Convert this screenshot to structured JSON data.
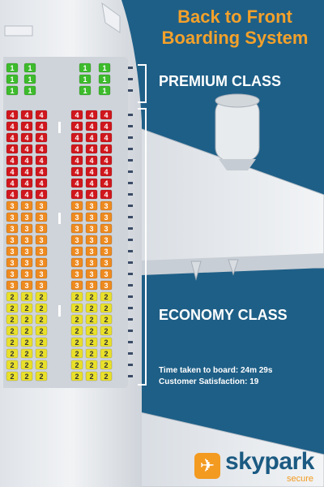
{
  "title": {
    "line1": "Back to Front",
    "line2": "Boarding System"
  },
  "labels": {
    "premium": "PREMIUM CLASS",
    "economy": "ECONOMY CLASS"
  },
  "stats": {
    "time": "Time taken to board: 24m 29s",
    "satisfaction": "Customer Satisfaction: 19"
  },
  "brand": {
    "name": "skypark",
    "tagline": "secure",
    "icon": "plane-icon"
  },
  "colors": {
    "background": "#1e5f87",
    "fuselage": "#e6e9ed",
    "group1": "#3dbb2c",
    "group2": "#e9e02b",
    "group3": "#ee8a1f",
    "group4": "#d0171d",
    "accent": "#f4a12a"
  },
  "seating": {
    "premium": {
      "rows": 3,
      "left_seats": 2,
      "right_seats": 2,
      "group": "1"
    },
    "economy": [
      {
        "group": "4",
        "rows": 8
      },
      {
        "group": "3",
        "rows": 8
      },
      {
        "group": "2",
        "rows": 8
      }
    ],
    "economy_left_seats": 3,
    "economy_right_seats": 3
  }
}
